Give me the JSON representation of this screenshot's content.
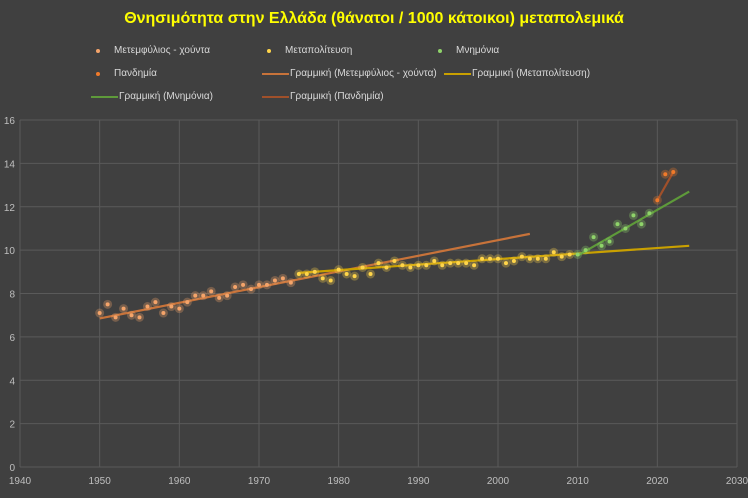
{
  "chart_data": {
    "type": "scatter",
    "title": "Θνησιμότητα  στην Ελλάδα (θάνατοι / 1000 κάτοικοι)  μεταπολεμικά",
    "xlim": [
      1940,
      2030
    ],
    "ylim": [
      0,
      16
    ],
    "xticks": [
      1940,
      1950,
      1960,
      1970,
      1980,
      1990,
      2000,
      2010,
      2020,
      2030
    ],
    "yticks": [
      0,
      2,
      4,
      6,
      8,
      10,
      12,
      14,
      16
    ],
    "grid": true,
    "legend_position": "top",
    "series": [
      {
        "name": "Μετεμφύλιος - χούντα",
        "color": "#f4a46a",
        "x0": 1950,
        "values": [
          7.1,
          7.5,
          6.9,
          7.3,
          7.0,
          6.9,
          7.4,
          7.6,
          7.1,
          7.4,
          7.3,
          7.6,
          7.9,
          7.9,
          8.1,
          7.8,
          7.9,
          8.3,
          8.4,
          8.2,
          8.4,
          8.4,
          8.6,
          8.7,
          8.5
        ]
      },
      {
        "name": "Μεταπολίτευση",
        "color": "#ffd54a",
        "x0": 1975,
        "values": [
          8.9,
          8.9,
          9.0,
          8.7,
          8.6,
          9.1,
          8.9,
          8.8,
          9.2,
          8.9,
          9.4,
          9.2,
          9.5,
          9.3,
          9.2,
          9.3,
          9.3,
          9.5,
          9.3,
          9.4,
          9.4,
          9.4,
          9.3,
          9.6,
          9.6,
          9.6,
          9.4,
          9.5,
          9.7,
          9.6,
          9.6,
          9.6,
          9.9,
          9.7,
          9.8
        ]
      },
      {
        "name": "Μνημόνια",
        "color": "#8fd36a",
        "x0": 2010,
        "values": [
          9.8,
          10.0,
          10.6,
          10.2,
          10.4,
          11.2,
          11.0,
          11.6,
          11.2,
          11.7
        ]
      },
      {
        "name": "Πανδημία",
        "color": "#f07a2a",
        "x0": 2020,
        "values": [
          12.3,
          13.5,
          13.6
        ]
      }
    ],
    "trendlines": [
      {
        "name": "Γραμμική (Μετεμφύλιος - χούντα)",
        "color": "#c8733a",
        "x": [
          1950,
          2004
        ],
        "y": [
          6.85,
          10.75
        ]
      },
      {
        "name": "Γραμμική (Μεταπολίτευση)",
        "color": "#c9a000",
        "x": [
          1975,
          2024
        ],
        "y": [
          8.95,
          10.2
        ]
      },
      {
        "name": "Γραμμική (Μνημόνια)",
        "color": "#5e9a3a",
        "x": [
          2010,
          2024
        ],
        "y": [
          9.75,
          12.7
        ]
      },
      {
        "name": "Γραμμική (Πανδημία)",
        "color": "#a0502a",
        "x": [
          2020,
          2022
        ],
        "y": [
          12.3,
          13.6
        ]
      }
    ]
  }
}
